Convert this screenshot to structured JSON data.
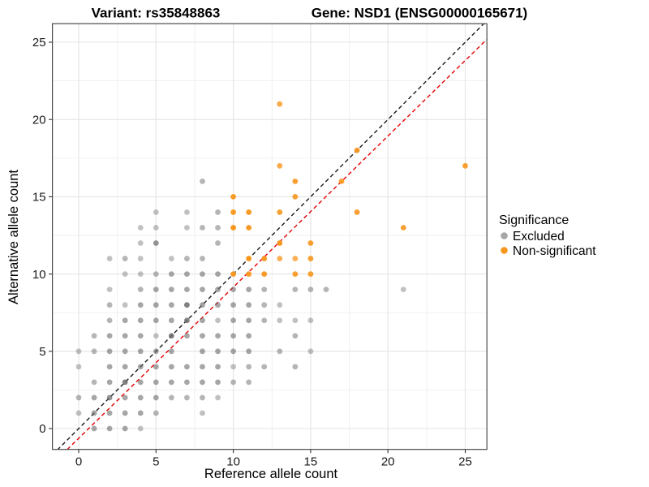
{
  "page": {
    "background": "#FFFFFF"
  },
  "chart_data": {
    "type": "scatter",
    "title_left": "Variant: rs35848863",
    "title_right": "Gene: NSD1 (ENSG00000165671)",
    "xlabel": "Reference allele count",
    "ylabel": "Alternative allele count",
    "xlim": [
      -1.7,
      26.4
    ],
    "ylim": [
      -1.35,
      26.2
    ],
    "xticks": [
      "0",
      "5",
      "10",
      "15",
      "20",
      "25"
    ],
    "yticks": [
      "0",
      "5",
      "10",
      "15",
      "20",
      "25"
    ],
    "xtick_values": [
      0,
      5,
      10,
      15,
      20,
      25
    ],
    "ytick_values": [
      0,
      5,
      10,
      15,
      20,
      25
    ],
    "minor_tick_values": [
      2.5,
      7.5,
      12.5,
      17.5,
      22.5
    ],
    "grid": "major+minor",
    "legend_position": "right",
    "legend": {
      "title": "Significance",
      "items": [
        {
          "label": "Excluded",
          "color": "#A6A6A6"
        },
        {
          "label": "Non-significant",
          "color": "#F8961E"
        }
      ]
    },
    "series": [
      {
        "name": "Excluded",
        "color": "#6B6B6B",
        "points": [
          [
            1,
            0,
            0.6
          ],
          [
            2,
            0,
            0.6
          ],
          [
            3,
            0,
            0.6
          ],
          [
            4,
            0,
            0.42
          ],
          [
            0,
            1,
            0.42
          ],
          [
            1,
            1,
            0.6
          ],
          [
            2,
            1,
            0.6
          ],
          [
            3,
            1,
            0.6
          ],
          [
            4,
            1,
            0.6
          ],
          [
            5,
            1,
            0.5
          ],
          [
            8,
            1,
            0.42
          ],
          [
            0,
            2,
            0.5
          ],
          [
            1,
            2,
            0.6
          ],
          [
            2,
            2,
            0.72
          ],
          [
            3,
            2,
            0.6
          ],
          [
            4,
            2,
            0.6
          ],
          [
            5,
            2,
            0.6
          ],
          [
            6,
            2,
            0.5
          ],
          [
            7,
            2,
            0.5
          ],
          [
            8,
            2,
            0.5
          ],
          [
            9,
            2,
            0.42
          ],
          [
            1,
            3,
            0.5
          ],
          [
            2,
            3,
            0.6
          ],
          [
            3,
            3,
            0.85
          ],
          [
            4,
            3,
            0.6
          ],
          [
            5,
            3,
            0.6
          ],
          [
            6,
            3,
            0.6
          ],
          [
            7,
            3,
            0.6
          ],
          [
            8,
            3,
            0.6
          ],
          [
            9,
            3,
            0.6
          ],
          [
            10,
            3,
            0.5
          ],
          [
            11,
            3,
            0.5
          ],
          [
            0,
            4,
            0.42
          ],
          [
            2,
            4,
            0.6
          ],
          [
            3,
            4,
            0.6
          ],
          [
            4,
            4,
            0.6
          ],
          [
            5,
            4,
            0.6
          ],
          [
            6,
            4,
            0.6
          ],
          [
            7,
            4,
            0.6
          ],
          [
            8,
            4,
            0.6
          ],
          [
            9,
            4,
            0.6
          ],
          [
            10,
            4,
            0.42
          ],
          [
            11,
            4,
            0.5
          ],
          [
            12,
            4,
            0.5
          ],
          [
            14,
            4,
            0.5
          ],
          [
            0,
            5,
            0.42
          ],
          [
            1,
            5,
            0.5
          ],
          [
            2,
            5,
            0.6
          ],
          [
            3,
            5,
            0.6
          ],
          [
            4,
            5,
            0.6
          ],
          [
            5,
            5,
            0.6
          ],
          [
            6,
            5,
            0.6
          ],
          [
            8,
            5,
            0.6
          ],
          [
            9,
            5,
            0.6
          ],
          [
            10,
            5,
            0.6
          ],
          [
            11,
            5,
            0.6
          ],
          [
            13,
            5,
            0.5
          ],
          [
            15,
            5,
            0.42
          ],
          [
            1,
            6,
            0.5
          ],
          [
            2,
            6,
            0.6
          ],
          [
            3,
            6,
            0.6
          ],
          [
            4,
            6,
            0.6
          ],
          [
            5,
            6,
            0.42
          ],
          [
            6,
            6,
            0.85
          ],
          [
            7,
            6,
            0.6
          ],
          [
            8,
            6,
            0.6
          ],
          [
            9,
            6,
            0.6
          ],
          [
            10,
            6,
            0.6
          ],
          [
            11,
            6,
            0.6
          ],
          [
            14,
            6,
            0.5
          ],
          [
            2,
            7,
            0.5
          ],
          [
            3,
            7,
            0.6
          ],
          [
            4,
            7,
            0.6
          ],
          [
            5,
            7,
            0.6
          ],
          [
            6,
            7,
            0.6
          ],
          [
            7,
            7,
            0.85
          ],
          [
            8,
            7,
            0.6
          ],
          [
            9,
            7,
            0.42
          ],
          [
            10,
            7,
            0.6
          ],
          [
            11,
            7,
            0.6
          ],
          [
            12,
            7,
            0.5
          ],
          [
            13,
            7,
            0.42
          ],
          [
            14,
            7,
            0.42
          ],
          [
            15,
            7,
            0.42
          ],
          [
            2,
            8,
            0.5
          ],
          [
            3,
            8,
            0.42
          ],
          [
            4,
            8,
            0.6
          ],
          [
            5,
            8,
            0.6
          ],
          [
            6,
            8,
            0.6
          ],
          [
            7,
            8,
            0.85
          ],
          [
            8,
            8,
            0.6
          ],
          [
            9,
            8,
            0.6
          ],
          [
            10,
            8,
            0.6
          ],
          [
            11,
            8,
            0.6
          ],
          [
            12,
            8,
            0.5
          ],
          [
            13,
            8,
            0.42
          ],
          [
            2,
            9,
            0.42
          ],
          [
            4,
            9,
            0.5
          ],
          [
            5,
            9,
            0.6
          ],
          [
            6,
            9,
            0.6
          ],
          [
            7,
            9,
            0.6
          ],
          [
            8,
            9,
            0.6
          ],
          [
            9,
            9,
            0.6
          ],
          [
            10,
            9,
            0.6
          ],
          [
            11,
            9,
            0.6
          ],
          [
            12,
            9,
            0.5
          ],
          [
            14,
            9,
            0.5
          ],
          [
            15,
            9,
            0.5
          ],
          [
            16,
            9,
            0.5
          ],
          [
            21,
            9,
            0.42
          ],
          [
            3,
            10,
            0.42
          ],
          [
            4,
            10,
            0.42
          ],
          [
            5,
            10,
            0.5
          ],
          [
            6,
            10,
            0.6
          ],
          [
            7,
            10,
            0.6
          ],
          [
            8,
            10,
            0.6
          ],
          [
            9,
            10,
            0.6
          ],
          [
            2,
            11,
            0.42
          ],
          [
            3,
            11,
            0.5
          ],
          [
            4,
            11,
            0.42
          ],
          [
            6,
            11,
            0.42
          ],
          [
            7,
            11,
            0.5
          ],
          [
            8,
            11,
            0.5
          ],
          [
            4,
            12,
            0.42
          ],
          [
            5,
            12,
            0.72
          ],
          [
            9,
            12,
            0.5
          ],
          [
            4,
            13,
            0.42
          ],
          [
            5,
            13,
            0.42
          ],
          [
            7,
            13,
            0.42
          ],
          [
            8,
            13,
            0.5
          ],
          [
            9,
            13,
            0.5
          ],
          [
            5,
            14,
            0.42
          ],
          [
            7,
            14,
            0.42
          ],
          [
            9,
            14,
            0.5
          ],
          [
            8,
            16,
            0.5
          ]
        ]
      },
      {
        "name": "Non-significant",
        "color": "#F8961E",
        "points": [
          [
            10,
            10,
            0.95
          ],
          [
            11,
            10,
            0.95
          ],
          [
            12,
            10,
            0.95
          ],
          [
            14,
            10,
            0.9
          ],
          [
            15,
            10,
            0.9
          ],
          [
            11,
            11,
            1
          ],
          [
            12,
            11,
            0.95
          ],
          [
            13,
            11,
            0.75
          ],
          [
            14,
            11,
            0.75
          ],
          [
            15,
            11,
            0.9
          ],
          [
            13,
            12,
            1
          ],
          [
            15,
            12,
            0.9
          ],
          [
            10,
            13,
            1
          ],
          [
            11,
            13,
            0.95
          ],
          [
            21,
            13,
            0.9
          ],
          [
            10,
            14,
            0.95
          ],
          [
            11,
            14,
            0.95
          ],
          [
            13,
            14,
            0.9
          ],
          [
            18,
            14,
            0.9
          ],
          [
            10,
            15,
            0.95
          ],
          [
            14,
            15,
            0.9
          ],
          [
            14,
            16,
            0.9
          ],
          [
            17,
            16,
            0.9
          ],
          [
            13,
            17,
            0.8
          ],
          [
            25,
            17,
            0.9
          ],
          [
            18,
            18,
            0.95
          ],
          [
            13,
            21,
            0.8
          ]
        ]
      }
    ],
    "lines": [
      {
        "name": "identity",
        "slope": 1,
        "intercept": 0,
        "color": "#1A1A1A",
        "style": "dashed"
      },
      {
        "name": "fit",
        "slope": 0.978,
        "intercept": -0.63,
        "color": "#E60000",
        "style": "dashed"
      }
    ]
  }
}
